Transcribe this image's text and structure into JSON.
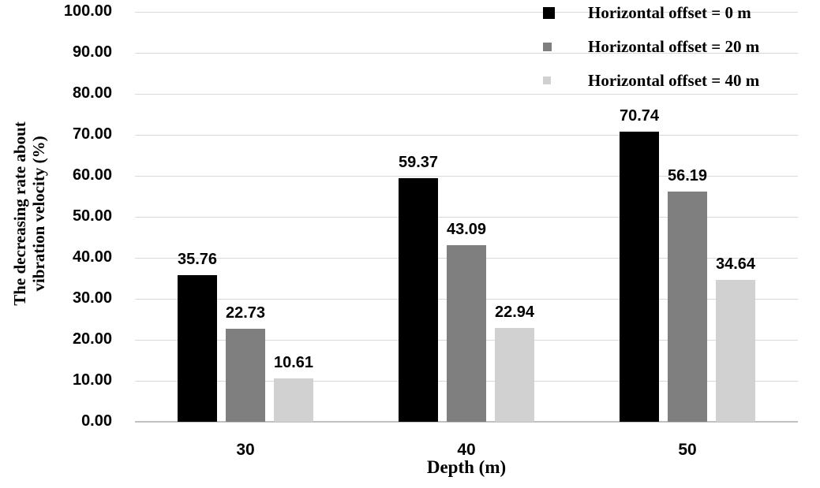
{
  "chart_data": {
    "type": "bar",
    "xlabel": "Depth (m)",
    "ylabel": "The decreasing rate about vibration velocity (%)",
    "ylabel_lines": [
      "The decreasing rate about",
      "vibration velocity (%)"
    ],
    "categories": [
      "30",
      "40",
      "50"
    ],
    "series": [
      {
        "name": "Horizontal offset = 0 m",
        "color": "#000000",
        "values": [
          35.76,
          59.37,
          70.74
        ]
      },
      {
        "name": "Horizontal offset = 20 m",
        "color": "#7f7f7f",
        "values": [
          22.73,
          43.09,
          56.19
        ]
      },
      {
        "name": "Horizontal offset = 40 m",
        "color": "#d1d1d1",
        "values": [
          10.61,
          22.94,
          34.64
        ]
      }
    ],
    "ylim": [
      0,
      100
    ],
    "ytick_step": 10,
    "ytick_decimals": 2,
    "value_label_decimals": 2,
    "grid": "horizontal",
    "gridline_color": "#d9d9d9",
    "axisline_color": "#c0c0c0",
    "legend_position": "top-right",
    "value_labels": true
  }
}
